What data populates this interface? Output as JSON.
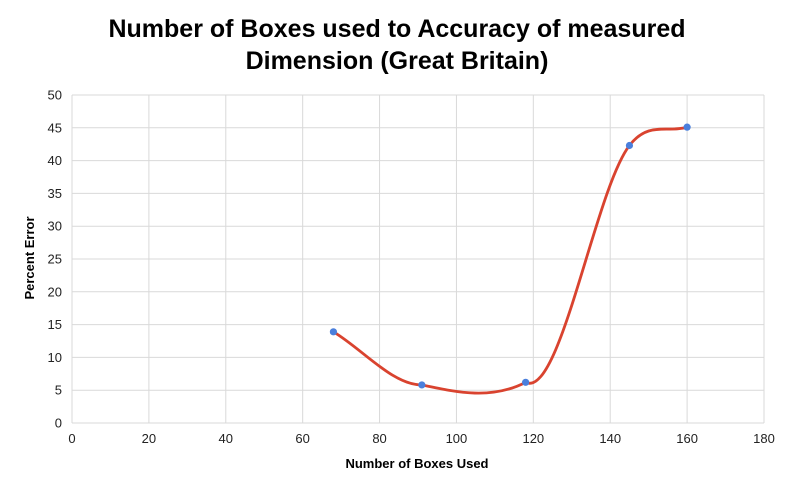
{
  "chart_data": {
    "type": "scatter",
    "title_lines": [
      "Number of Boxes used to Accuracy of measured",
      "Dimension (Great Britain)"
    ],
    "xlabel": "Number of Boxes Used",
    "ylabel": "Percent Error",
    "xlim": [
      0,
      180
    ],
    "ylim": [
      0,
      50
    ],
    "xticks": [
      0,
      20,
      40,
      60,
      80,
      100,
      120,
      140,
      160,
      180
    ],
    "yticks": [
      0,
      5,
      10,
      15,
      20,
      25,
      30,
      35,
      40,
      45,
      50
    ],
    "grid": true,
    "series": [
      {
        "points": [
          {
            "x": 68,
            "y": 13.9
          },
          {
            "x": 91,
            "y": 5.8
          },
          {
            "x": 118,
            "y": 6.2
          },
          {
            "x": 145,
            "y": 42.3
          },
          {
            "x": 160,
            "y": 45.1
          }
        ],
        "smooth_line": true
      }
    ],
    "colors": {
      "line": "#d9432f",
      "marker": "#4a7fdc",
      "grid": "#d9d9d9"
    }
  }
}
